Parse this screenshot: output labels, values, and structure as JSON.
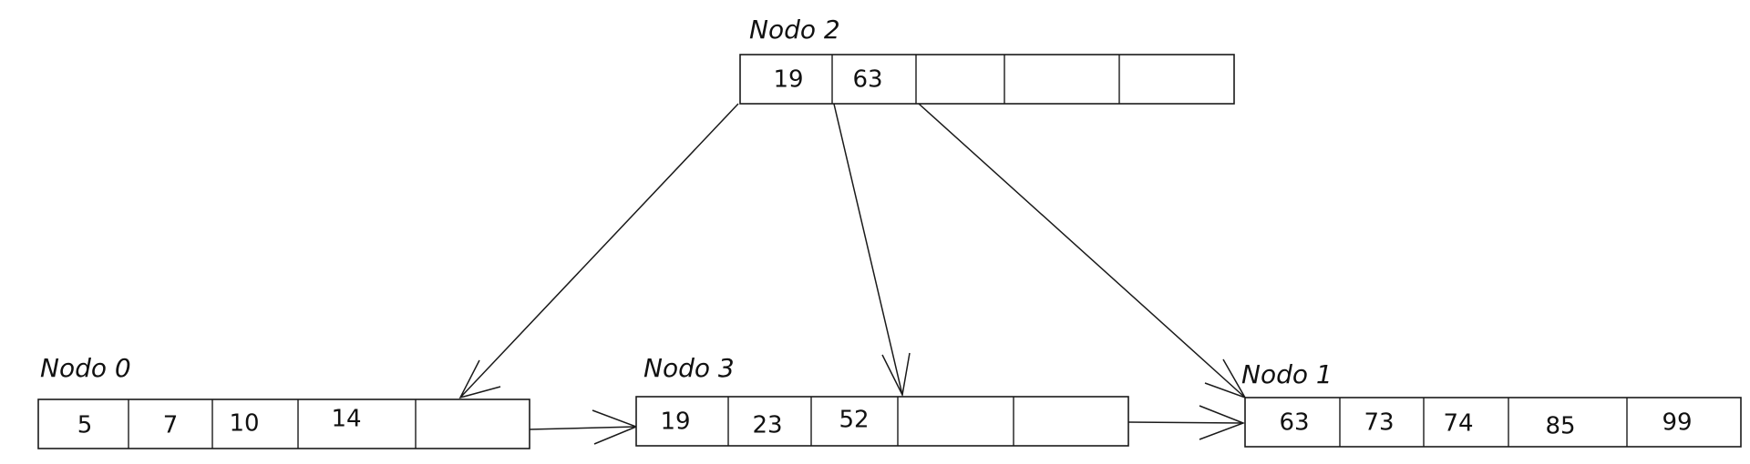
{
  "nodes": {
    "n2": {
      "label": "Nodo 2",
      "keys": [
        "19",
        "63",
        "",
        "",
        ""
      ]
    },
    "n0": {
      "label": "Nodo 0",
      "keys": [
        "5",
        "7",
        "10",
        "14",
        ""
      ]
    },
    "n3": {
      "label": "Nodo 3",
      "keys": [
        "19",
        "23",
        "52",
        "",
        ""
      ]
    },
    "n1": {
      "label": "Nodo 1",
      "keys": [
        "63",
        "73",
        "74",
        "85",
        "99"
      ]
    }
  },
  "edges": [
    {
      "from": "Nodo 2",
      "to": "Nodo 0",
      "kind": "child-pointer"
    },
    {
      "from": "Nodo 2",
      "to": "Nodo 3",
      "kind": "child-pointer"
    },
    {
      "from": "Nodo 2",
      "to": "Nodo 1",
      "kind": "child-pointer"
    },
    {
      "from": "Nodo 0",
      "to": "Nodo 3",
      "kind": "sibling-pointer"
    },
    {
      "from": "Nodo 3",
      "to": "Nodo 1",
      "kind": "sibling-pointer"
    }
  ]
}
